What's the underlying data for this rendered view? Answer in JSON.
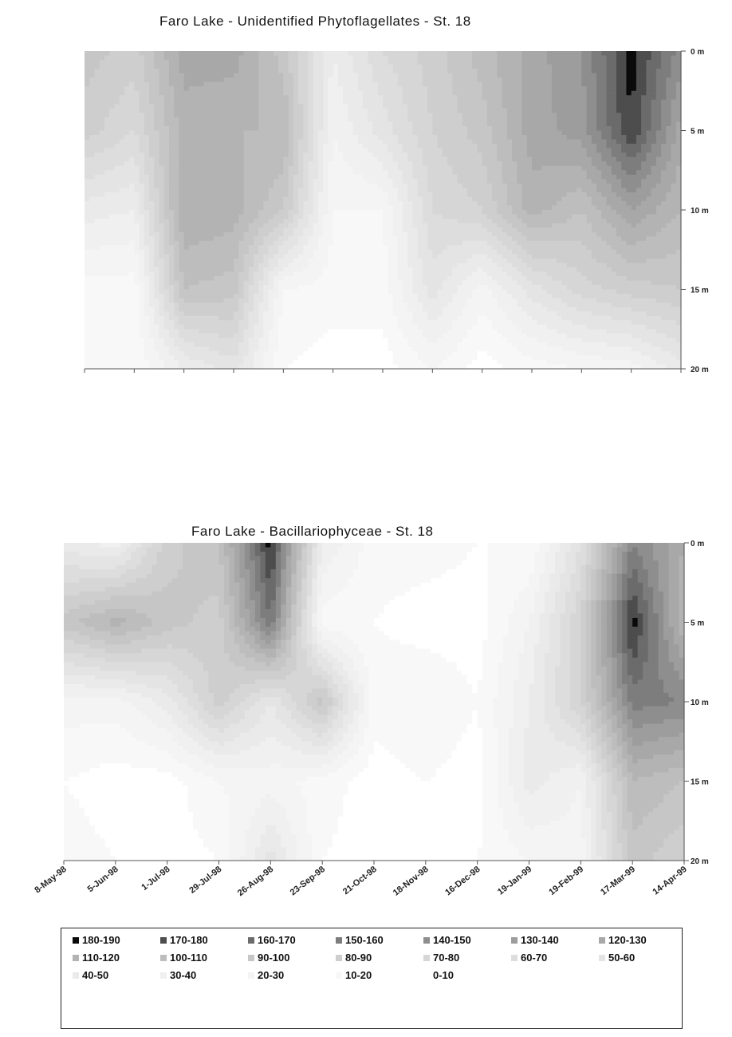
{
  "chart_data": [
    {
      "type": "heatmap",
      "title": "Faro Lake - Unidentified Phytoflagellates - St. 18",
      "y_axis": {
        "tick_labels": [
          "0 m",
          "5 m",
          "10 m",
          "15 m",
          "20 m"
        ],
        "range_m": [
          0,
          20
        ],
        "inverted": true
      },
      "x_axis": {
        "tick_labels": []
      },
      "x": [
        "8-May-98",
        "5-Jun-98",
        "1-Jul-98",
        "29-Jul-98",
        "26-Aug-98",
        "23-Sep-98",
        "21-Oct-98",
        "18-Nov-98",
        "16-Dec-98",
        "19-Jan-99",
        "19-Feb-99",
        "17-Mar-99",
        "14-Apr-99"
      ],
      "depths_m": [
        0,
        5,
        10,
        15,
        20
      ],
      "values": [
        [
          95,
          85,
          125,
          125,
          95,
          40,
          70,
          85,
          105,
          125,
          140,
          185,
          145
        ],
        [
          85,
          70,
          115,
          110,
          110,
          30,
          55,
          80,
          95,
          125,
          135,
          180,
          125
        ],
        [
          45,
          40,
          120,
          115,
          90,
          20,
          20,
          70,
          80,
          115,
          100,
          130,
          110
        ],
        [
          15,
          15,
          100,
          95,
          20,
          15,
          15,
          55,
          25,
          55,
          75,
          85,
          90
        ],
        [
          10,
          10,
          40,
          55,
          10,
          5,
          5,
          20,
          5,
          15,
          20,
          25,
          45
        ]
      ],
      "grid": false
    },
    {
      "type": "heatmap",
      "title": "Faro Lake - Bacillariophyceae - St. 18",
      "y_axis": {
        "tick_labels": [
          "0 m",
          "5 m",
          "10 m",
          "15 m",
          "20 m"
        ],
        "range_m": [
          0,
          20
        ],
        "inverted": true
      },
      "x_axis": {
        "tick_labels": [
          "8-May-98",
          "5-Jun-98",
          "1-Jul-98",
          "29-Jul-98",
          "26-Aug-98",
          "23-Sep-98",
          "21-Oct-98",
          "18-Nov-98",
          "16-Dec-98",
          "19-Jan-99",
          "19-Feb-99",
          "17-Mar-99",
          "14-Apr-99"
        ]
      },
      "x": [
        "8-May-98",
        "5-Jun-98",
        "1-Jul-98",
        "29-Jul-98",
        "26-Aug-98",
        "23-Sep-98",
        "21-Oct-98",
        "18-Nov-98",
        "16-Dec-98",
        "19-Jan-99",
        "19-Feb-99",
        "17-Mar-99",
        "14-Apr-99"
      ],
      "depths_m": [
        0,
        5,
        10,
        15,
        20
      ],
      "values": [
        [
          45,
          35,
          85,
          100,
          185,
          40,
          15,
          15,
          10,
          10,
          60,
          150,
          120
        ],
        [
          95,
          115,
          95,
          85,
          160,
          15,
          10,
          5,
          5,
          30,
          80,
          185,
          110
        ],
        [
          25,
          25,
          45,
          85,
          50,
          95,
          15,
          20,
          10,
          40,
          80,
          155,
          150
        ],
        [
          10,
          5,
          5,
          20,
          25,
          15,
          5,
          10,
          5,
          45,
          30,
          110,
          100
        ],
        [
          15,
          10,
          5,
          10,
          55,
          10,
          5,
          5,
          10,
          20,
          25,
          95,
          80
        ]
      ],
      "grid": false
    }
  ],
  "legend": {
    "items": [
      "180-190",
      "170-180",
      "160-170",
      "150-160",
      "140-150",
      "130-140",
      "120-130",
      "110-120",
      "100-110",
      "90-100",
      "80-90",
      "70-80",
      "60-70",
      "50-60",
      "40-50",
      "30-40",
      "20-30",
      "10-20",
      "0-10"
    ],
    "colors": [
      "#0a0a0a",
      "#4d4d4d",
      "#6b6b6b",
      "#7d7d7d",
      "#8e8e8e",
      "#9d9d9d",
      "#a8a8a8",
      "#b3b3b3",
      "#bdbdbd",
      "#c6c6c6",
      "#cecece",
      "#d6d6d6",
      "#dddddd",
      "#e4e4e4",
      "#eaeaea",
      "#f0f0f0",
      "#f4f4f4",
      "#f8f8f8",
      "#ffffff"
    ],
    "placement": "bottom"
  }
}
